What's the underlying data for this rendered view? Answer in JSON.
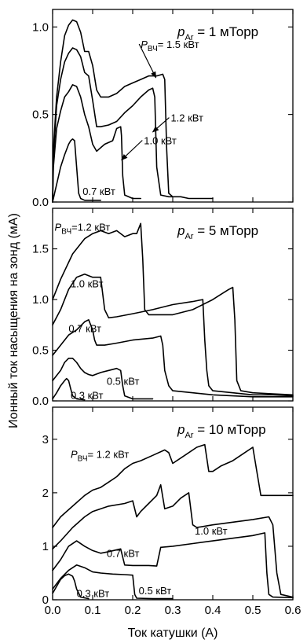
{
  "chart_data": {
    "type": "line",
    "xlabel": "Ток катушки (А)",
    "ylabel": "Ионный ток насыщения на зонд (мА)",
    "x_ticks": [
      "0.0",
      "0.1",
      "0.2",
      "0.3",
      "0.4",
      "0.5",
      "0.6"
    ],
    "xlim": [
      0,
      0.6
    ],
    "panels": [
      {
        "pressure_label": {
          "main": "p",
          "sub": "Ar",
          "rest": " = 1 мТорр"
        },
        "ylim": [
          0,
          1.1
        ],
        "y_ticks": [
          {
            "value": 0.0,
            "label": "0.0"
          },
          {
            "value": 0.5,
            "label": "0.5"
          },
          {
            "value": 1.0,
            "label": "1.0"
          }
        ],
        "annotations": [
          {
            "series": 0,
            "parts": [
              [
                "P",
                ""
              ],
              [
                "ВЧ",
                "sub"
              ],
              [
                "= 1.5 кВт",
                ""
              ]
            ],
            "ax": 0.22,
            "ay": 0.88,
            "arrow_to": [
              0.258,
              0.71
            ]
          },
          {
            "series": 1,
            "parts": [
              [
                "1.2 кВт",
                ""
              ]
            ],
            "ax": 0.295,
            "ay": 0.46,
            "arrow_to": [
              0.25,
              0.4
            ]
          },
          {
            "series": 2,
            "parts": [
              [
                "1.0 кВт",
                ""
              ]
            ],
            "ax": 0.228,
            "ay": 0.33,
            "arrow_to": [
              0.172,
              0.24
            ]
          },
          {
            "series": 3,
            "parts": [
              [
                "0.7 кВт",
                ""
              ]
            ],
            "ax": 0.075,
            "ay": 0.04
          }
        ],
        "series": [
          {
            "x": [
              0.0,
              0.002,
              0.01,
              0.02,
              0.03,
              0.04,
              0.05,
              0.06,
              0.07,
              0.08,
              0.09,
              0.1,
              0.11,
              0.12,
              0.14,
              0.16,
              0.18,
              0.2,
              0.22,
              0.24,
              0.26,
              0.275,
              0.28,
              0.285,
              0.29,
              0.3,
              0.32,
              0.34,
              0.4
            ],
            "y": [
              0.0,
              0.3,
              0.6,
              0.8,
              0.95,
              1.01,
              1.04,
              1.03,
              0.97,
              0.86,
              0.86,
              0.78,
              0.64,
              0.6,
              0.6,
              0.62,
              0.66,
              0.68,
              0.7,
              0.72,
              0.72,
              0.73,
              0.7,
              0.3,
              0.05,
              0.03,
              0.03,
              0.02,
              0.02
            ]
          },
          {
            "x": [
              0.0,
              0.002,
              0.01,
              0.02,
              0.03,
              0.04,
              0.05,
              0.06,
              0.07,
              0.08,
              0.09,
              0.1,
              0.11,
              0.12,
              0.14,
              0.16,
              0.18,
              0.2,
              0.22,
              0.24,
              0.25,
              0.255,
              0.26,
              0.27,
              0.29,
              0.3
            ],
            "y": [
              0.0,
              0.25,
              0.55,
              0.7,
              0.8,
              0.85,
              0.88,
              0.87,
              0.83,
              0.74,
              0.72,
              0.58,
              0.43,
              0.43,
              0.44,
              0.46,
              0.51,
              0.55,
              0.6,
              0.64,
              0.65,
              0.6,
              0.2,
              0.04,
              0.03,
              0.03
            ]
          },
          {
            "x": [
              0.0,
              0.002,
              0.01,
              0.02,
              0.03,
              0.04,
              0.05,
              0.06,
              0.07,
              0.08,
              0.09,
              0.1,
              0.11,
              0.13,
              0.15,
              0.16,
              0.17,
              0.172,
              0.175,
              0.18,
              0.2,
              0.22
            ],
            "y": [
              0.0,
              0.2,
              0.42,
              0.52,
              0.6,
              0.63,
              0.67,
              0.66,
              0.6,
              0.5,
              0.43,
              0.33,
              0.29,
              0.33,
              0.35,
              0.42,
              0.43,
              0.38,
              0.15,
              0.04,
              0.02,
              0.02
            ]
          },
          {
            "x": [
              0.0,
              0.005,
              0.02,
              0.03,
              0.04,
              0.045,
              0.05,
              0.055,
              0.06,
              0.065,
              0.07,
              0.08,
              0.12
            ],
            "y": [
              0.0,
              0.05,
              0.2,
              0.27,
              0.33,
              0.35,
              0.36,
              0.35,
              0.2,
              0.05,
              0.02,
              0.01,
              0.01
            ]
          }
        ]
      },
      {
        "pressure_label": {
          "main": "p",
          "sub": "Ar",
          "rest": " = 5 мТорр"
        },
        "ylim": [
          0,
          1.9
        ],
        "y_ticks": [
          {
            "value": 0.0,
            "label": "0.0"
          },
          {
            "value": 0.5,
            "label": "0.5"
          },
          {
            "value": 1.0,
            "label": "1.0"
          },
          {
            "value": 1.5,
            "label": "1.5"
          }
        ],
        "annotations": [
          {
            "series": 0,
            "parts": [
              [
                "P",
                ""
              ],
              [
                "ВЧ",
                "sub"
              ],
              [
                "=1.2 кВт",
                ""
              ]
            ],
            "ax": 0.005,
            "ay": 1.68
          },
          {
            "series": 1,
            "parts": [
              [
                "1.0 кВт",
                ""
              ]
            ],
            "ax": 0.045,
            "ay": 1.12
          },
          {
            "series": 2,
            "parts": [
              [
                "0.7 кВт",
                ""
              ]
            ],
            "ax": 0.04,
            "ay": 0.68
          },
          {
            "series": 3,
            "parts": [
              [
                "0.5 кВт",
                ""
              ]
            ],
            "ax": 0.135,
            "ay": 0.16
          },
          {
            "series": 4,
            "parts": [
              [
                "0.3 кВт",
                ""
              ]
            ],
            "ax": 0.045,
            "ay": 0.02
          }
        ],
        "series": [
          {
            "x": [
              0.0,
              0.02,
              0.05,
              0.08,
              0.1,
              0.12,
              0.14,
              0.16,
              0.18,
              0.2,
              0.21,
              0.22,
              0.225,
              0.23,
              0.24,
              0.26,
              0.3,
              0.35,
              0.4,
              0.42,
              0.44,
              0.45,
              0.455,
              0.46,
              0.47,
              0.5,
              0.55,
              0.6
            ],
            "y": [
              1.0,
              1.2,
              1.45,
              1.6,
              1.65,
              1.68,
              1.65,
              1.68,
              1.62,
              1.65,
              1.65,
              1.75,
              1.4,
              0.9,
              0.85,
              0.85,
              0.85,
              0.9,
              1.0,
              1.05,
              1.1,
              1.12,
              0.8,
              0.2,
              0.1,
              0.08,
              0.07,
              0.06
            ]
          },
          {
            "x": [
              0.0,
              0.02,
              0.04,
              0.06,
              0.08,
              0.1,
              0.12,
              0.13,
              0.14,
              0.16,
              0.2,
              0.25,
              0.3,
              0.35,
              0.375,
              0.38,
              0.385,
              0.39,
              0.4,
              0.45,
              0.5,
              0.55,
              0.6
            ],
            "y": [
              0.75,
              0.9,
              1.1,
              1.22,
              1.25,
              1.22,
              1.22,
              0.9,
              0.82,
              0.83,
              0.86,
              0.9,
              0.95,
              0.98,
              1.0,
              0.6,
              0.3,
              0.15,
              0.1,
              0.08,
              0.06,
              0.06,
              0.05
            ]
          },
          {
            "x": [
              0.0,
              0.02,
              0.04,
              0.06,
              0.08,
              0.09,
              0.1,
              0.105,
              0.11,
              0.13,
              0.16,
              0.2,
              0.25,
              0.27,
              0.275,
              0.28,
              0.29,
              0.3,
              0.35,
              0.4,
              0.45,
              0.5,
              0.55,
              0.6
            ],
            "y": [
              0.45,
              0.55,
              0.65,
              0.7,
              0.78,
              0.8,
              0.7,
              0.6,
              0.55,
              0.55,
              0.57,
              0.6,
              0.62,
              0.64,
              0.55,
              0.3,
              0.15,
              0.1,
              0.08,
              0.06,
              0.05,
              0.04,
              0.04,
              0.04
            ]
          },
          {
            "x": [
              0.0,
              0.02,
              0.03,
              0.04,
              0.05,
              0.06,
              0.07,
              0.08,
              0.09,
              0.1,
              0.12,
              0.14,
              0.16,
              0.17,
              0.175,
              0.18,
              0.2,
              0.22,
              0.25
            ],
            "y": [
              0.2,
              0.3,
              0.38,
              0.42,
              0.42,
              0.38,
              0.32,
              0.28,
              0.26,
              0.25,
              0.28,
              0.3,
              0.32,
              0.3,
              0.15,
              0.05,
              0.02,
              0.02,
              0.02
            ]
          },
          {
            "x": [
              0.0,
              0.01,
              0.02,
              0.03,
              0.035,
              0.04,
              0.045,
              0.05,
              0.06,
              0.08
            ],
            "y": [
              0.02,
              0.08,
              0.15,
              0.2,
              0.22,
              0.2,
              0.12,
              0.05,
              0.02,
              0.01
            ]
          }
        ]
      },
      {
        "pressure_label": {
          "main": "p",
          "sub": "Ar",
          "rest": " = 10 мТорр"
        },
        "ylim": [
          0,
          3.6
        ],
        "y_ticks": [
          {
            "value": 0,
            "label": "0"
          },
          {
            "value": 1,
            "label": "1"
          },
          {
            "value": 2,
            "label": "2"
          },
          {
            "value": 3,
            "label": "3"
          }
        ],
        "annotations": [
          {
            "series": 0,
            "parts": [
              [
                "P",
                ""
              ],
              [
                "ВЧ",
                "sub"
              ],
              [
                "= 1.2 кВт",
                ""
              ]
            ],
            "ax": 0.045,
            "ay": 2.65
          },
          {
            "series": 1,
            "parts": [
              [
                "1.0 кВт",
                ""
              ]
            ],
            "ax": 0.355,
            "ay": 1.22
          },
          {
            "series": 2,
            "parts": [
              [
                "0.7 кВт",
                ""
              ]
            ],
            "ax": 0.135,
            "ay": 0.8
          },
          {
            "series": 3,
            "parts": [
              [
                "0.3 кВт",
                ""
              ]
            ],
            "ax": 0.06,
            "ay": 0.05
          },
          {
            "series": 4,
            "parts": [
              [
                "0.5 кВт",
                ""
              ]
            ],
            "ax": 0.215,
            "ay": 0.1
          }
        ],
        "series": [
          {
            "x": [
              0.0,
              0.02,
              0.05,
              0.08,
              0.1,
              0.12,
              0.14,
              0.16,
              0.18,
              0.2,
              0.22,
              0.25,
              0.28,
              0.29,
              0.3,
              0.33,
              0.36,
              0.38,
              0.39,
              0.4,
              0.42,
              0.45,
              0.48,
              0.5,
              0.51,
              0.52,
              0.55,
              0.6
            ],
            "y": [
              1.35,
              1.55,
              1.75,
              1.95,
              2.05,
              2.1,
              2.2,
              2.3,
              2.45,
              2.55,
              2.6,
              2.7,
              2.8,
              2.75,
              2.55,
              2.7,
              2.85,
              2.9,
              2.4,
              2.4,
              2.5,
              2.6,
              2.75,
              2.85,
              2.4,
              1.95,
              1.95,
              1.95
            ]
          },
          {
            "x": [
              0.0,
              0.02,
              0.05,
              0.08,
              0.1,
              0.14,
              0.18,
              0.2,
              0.21,
              0.22,
              0.24,
              0.26,
              0.27,
              0.28,
              0.3,
              0.32,
              0.34,
              0.35,
              0.36,
              0.4,
              0.45,
              0.5,
              0.54,
              0.55,
              0.56,
              0.57,
              0.6
            ],
            "y": [
              0.95,
              1.1,
              1.35,
              1.55,
              1.65,
              1.75,
              1.8,
              1.85,
              1.55,
              1.65,
              1.8,
              1.95,
              2.15,
              1.7,
              1.75,
              1.9,
              2.0,
              1.4,
              1.35,
              1.4,
              1.45,
              1.5,
              1.55,
              1.4,
              0.5,
              0.1,
              0.05
            ]
          },
          {
            "x": [
              0.0,
              0.02,
              0.04,
              0.06,
              0.08,
              0.1,
              0.12,
              0.14,
              0.17,
              0.18,
              0.2,
              0.24,
              0.26,
              0.27,
              0.3,
              0.35,
              0.4,
              0.45,
              0.5,
              0.53,
              0.535,
              0.54,
              0.55,
              0.6
            ],
            "y": [
              0.55,
              0.75,
              1.0,
              1.1,
              1.0,
              0.92,
              0.87,
              0.9,
              0.95,
              0.65,
              0.64,
              0.64,
              0.63,
              0.98,
              1.0,
              1.05,
              1.1,
              1.15,
              1.2,
              1.25,
              0.5,
              0.1,
              0.05,
              0.04
            ]
          },
          {
            "x": [
              0.0,
              0.01,
              0.02,
              0.03,
              0.04,
              0.05,
              0.055,
              0.06,
              0.07,
              0.09
            ],
            "y": [
              0.12,
              0.25,
              0.38,
              0.45,
              0.48,
              0.44,
              0.35,
              0.2,
              0.05,
              0.02
            ]
          },
          {
            "x": [
              0.0,
              0.02,
              0.04,
              0.06,
              0.08,
              0.1,
              0.12,
              0.15,
              0.18,
              0.2,
              0.205,
              0.21,
              0.25,
              0.26,
              0.265,
              0.27,
              0.3
            ],
            "y": [
              0.2,
              0.4,
              0.55,
              0.65,
              0.6,
              0.52,
              0.5,
              0.48,
              0.47,
              0.46,
              0.1,
              0.03,
              0.02,
              0.02,
              0.02,
              0.02,
              0.02
            ]
          }
        ]
      }
    ]
  }
}
